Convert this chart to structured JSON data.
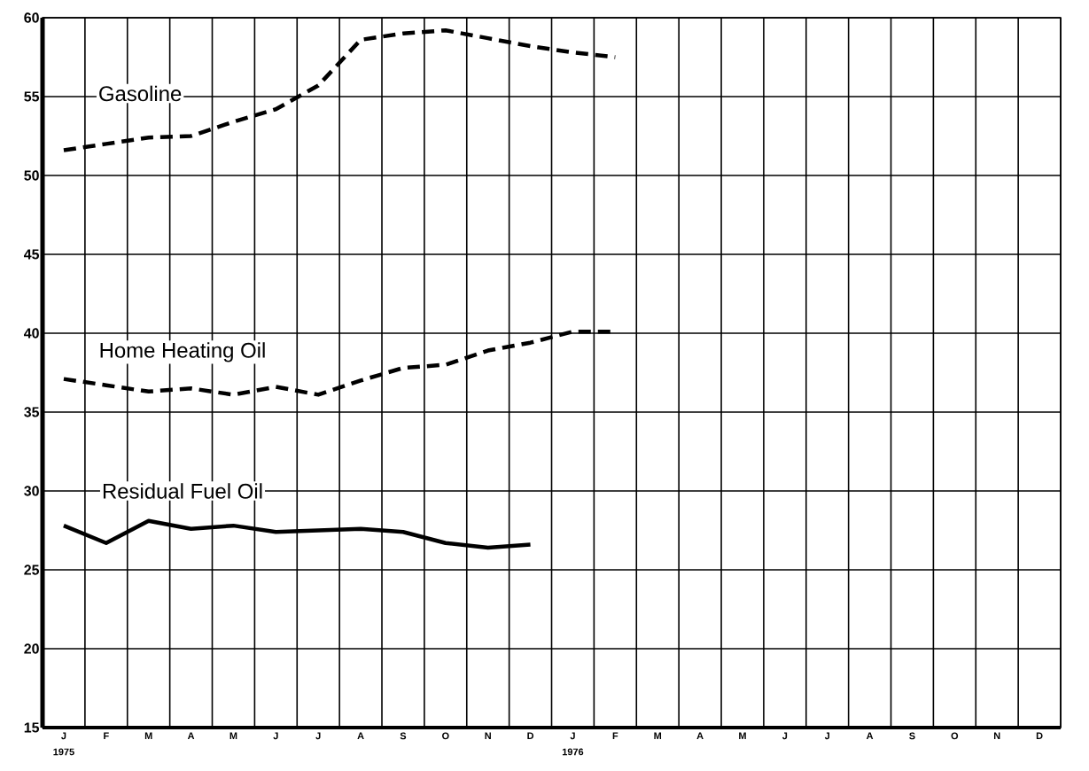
{
  "chart_data": {
    "type": "line",
    "categories": [
      "J",
      "F",
      "M",
      "A",
      "M",
      "J",
      "J",
      "A",
      "S",
      "O",
      "N",
      "D",
      "J",
      "F",
      "M",
      "A",
      "M",
      "J",
      "J",
      "A",
      "S",
      "O",
      "N",
      "D"
    ],
    "ylim": [
      15,
      60
    ],
    "yticks": [
      15,
      20,
      25,
      30,
      35,
      40,
      45,
      50,
      55,
      60
    ],
    "grid": true,
    "annotations": [
      "1975",
      "1976"
    ],
    "series": [
      {
        "name": "Gasoline",
        "color": "#000000",
        "line_style": "dashed",
        "values": [
          51.6,
          52.0,
          52.4,
          52.5,
          53.4,
          54.2,
          55.7,
          58.6,
          59.0,
          59.2,
          58.7,
          58.2,
          57.8,
          57.5,
          null,
          null,
          null,
          null,
          null,
          null,
          null,
          null,
          null,
          null
        ]
      },
      {
        "name": "Home Heating Oil",
        "color": "#000000",
        "line_style": "dashed",
        "values": [
          37.1,
          36.7,
          36.3,
          36.5,
          36.1,
          36.6,
          36.1,
          37.0,
          37.8,
          38.0,
          38.9,
          39.4,
          40.1,
          40.1,
          null,
          null,
          null,
          null,
          null,
          null,
          null,
          null,
          null,
          null
        ]
      },
      {
        "name": "Residual Fuel Oil",
        "color": "#000000",
        "line_style": "solid",
        "values": [
          27.8,
          26.7,
          28.1,
          27.6,
          27.8,
          27.4,
          27.5,
          27.6,
          27.4,
          26.7,
          26.4,
          26.6,
          null,
          null,
          null,
          null,
          null,
          null,
          null,
          null,
          null,
          null,
          null,
          null
        ]
      }
    ]
  }
}
